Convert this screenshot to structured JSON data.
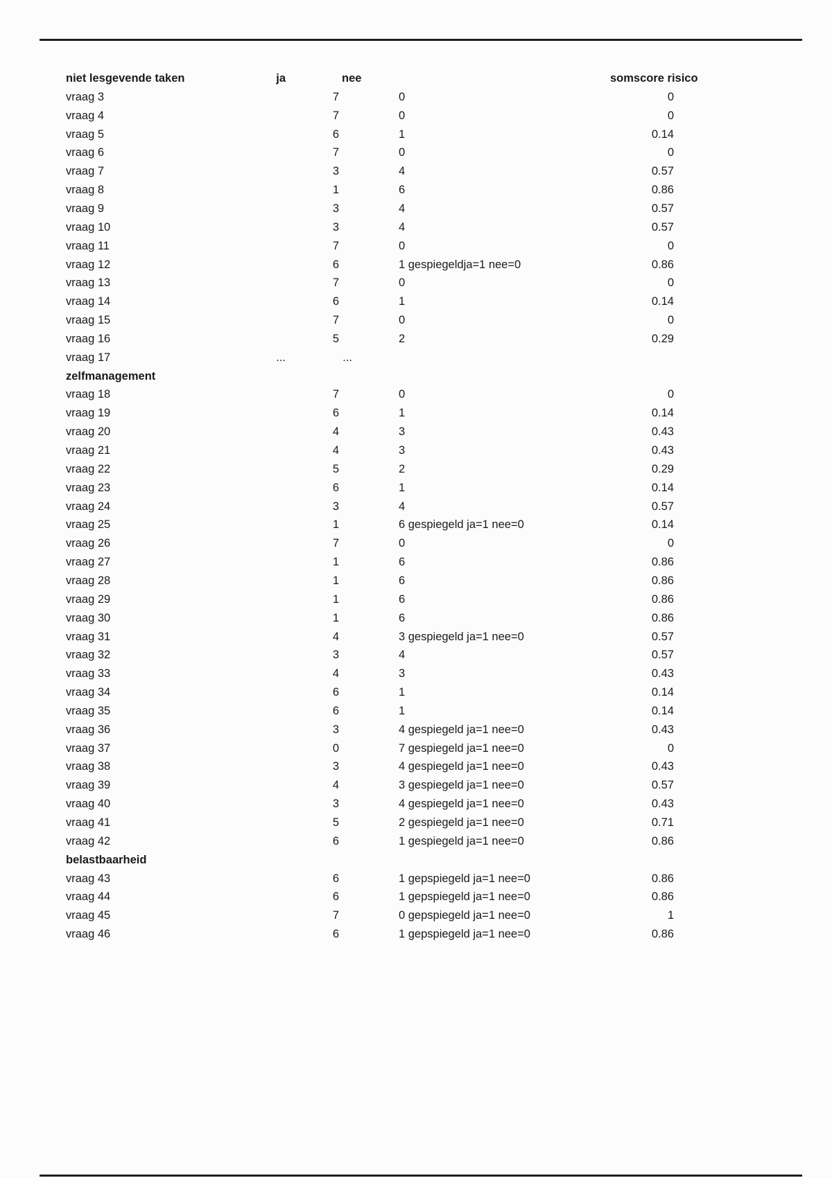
{
  "page": {
    "background": "#fcfcfc",
    "rule_color": "#1e1e1e",
    "text_color": "#1a1a1a"
  },
  "table": {
    "headers": {
      "label": "niet lesgevende taken",
      "ja": "ja",
      "nee": "nee",
      "score": "somscore risico"
    },
    "rows": [
      {
        "type": "data",
        "label": "vraag 3",
        "ja": "7",
        "nee": "0",
        "note": "",
        "score": "0"
      },
      {
        "type": "data",
        "label": "vraag 4",
        "ja": "7",
        "nee": "0",
        "note": "",
        "score": "0"
      },
      {
        "type": "data",
        "label": "vraag 5",
        "ja": "6",
        "nee": "1",
        "note": "",
        "score": "0.14"
      },
      {
        "type": "data",
        "label": "vraag 6",
        "ja": "7",
        "nee": "0",
        "note": "",
        "score": "0"
      },
      {
        "type": "data",
        "label": "vraag 7",
        "ja": "3",
        "nee": "4",
        "note": "",
        "score": "0.57"
      },
      {
        "type": "data",
        "label": "vraag 8",
        "ja": "1",
        "nee": "6",
        "note": "",
        "score": "0.86"
      },
      {
        "type": "data",
        "label": "vraag 9",
        "ja": "3",
        "nee": "4",
        "note": "",
        "score": "0.57"
      },
      {
        "type": "data",
        "label": "vraag 10",
        "ja": "3",
        "nee": "4",
        "note": "",
        "score": "0.57"
      },
      {
        "type": "data",
        "label": "vraag 11",
        "ja": "7",
        "nee": "0",
        "note": "",
        "score": "0"
      },
      {
        "type": "data",
        "label": "vraag 12",
        "ja": "6",
        "nee": "1",
        "note": "gespiegeldja=1 nee=0",
        "score": "0.86"
      },
      {
        "type": "data",
        "label": "vraag 13",
        "ja": "7",
        "nee": "0",
        "note": "",
        "score": "0"
      },
      {
        "type": "data",
        "label": "vraag 14",
        "ja": "6",
        "nee": "1",
        "note": "",
        "score": "0.14"
      },
      {
        "type": "data",
        "label": "vraag 15",
        "ja": "7",
        "nee": "0",
        "note": "",
        "score": "0"
      },
      {
        "type": "data",
        "label": "vraag 16",
        "ja": "5",
        "nee": "2",
        "note": "",
        "score": "0.29"
      },
      {
        "type": "ellipsis",
        "label": "vraag 17",
        "ja": "...",
        "nee": "...",
        "note": "",
        "score": ""
      },
      {
        "type": "section",
        "label": "zelfmanagement"
      },
      {
        "type": "data",
        "label": "vraag 18",
        "ja": "7",
        "nee": "0",
        "note": "",
        "score": "0"
      },
      {
        "type": "data",
        "label": "vraag 19",
        "ja": "6",
        "nee": "1",
        "note": "",
        "score": "0.14"
      },
      {
        "type": "data",
        "label": "vraag 20",
        "ja": "4",
        "nee": "3",
        "note": "",
        "score": "0.43"
      },
      {
        "type": "data",
        "label": "vraag 21",
        "ja": "4",
        "nee": "3",
        "note": "",
        "score": "0.43"
      },
      {
        "type": "data",
        "label": "vraag 22",
        "ja": "5",
        "nee": "2",
        "note": "",
        "score": "0.29"
      },
      {
        "type": "data",
        "label": "vraag 23",
        "ja": "6",
        "nee": "1",
        "note": "",
        "score": "0.14"
      },
      {
        "type": "data",
        "label": "vraag 24",
        "ja": "3",
        "nee": "4",
        "note": "",
        "score": "0.57"
      },
      {
        "type": "data",
        "label": "vraag 25",
        "ja": "1",
        "nee": "6",
        "note": "gespiegeld ja=1 nee=0",
        "score": "0.14"
      },
      {
        "type": "data",
        "label": "vraag 26",
        "ja": "7",
        "nee": "0",
        "note": "",
        "score": "0"
      },
      {
        "type": "data",
        "label": "vraag 27",
        "ja": "1",
        "nee": "6",
        "note": "",
        "score": "0.86"
      },
      {
        "type": "data",
        "label": "vraag 28",
        "ja": "1",
        "nee": "6",
        "note": "",
        "score": "0.86"
      },
      {
        "type": "data",
        "label": "vraag 29",
        "ja": "1",
        "nee": "6",
        "note": "",
        "score": "0.86"
      },
      {
        "type": "data",
        "label": "vraag 30",
        "ja": "1",
        "nee": "6",
        "note": "",
        "score": "0.86"
      },
      {
        "type": "data",
        "label": "vraag 31",
        "ja": "4",
        "nee": "3",
        "note": "gespiegeld ja=1 nee=0",
        "score": "0.57"
      },
      {
        "type": "data",
        "label": "vraag 32",
        "ja": "3",
        "nee": "4",
        "note": "",
        "score": "0.57"
      },
      {
        "type": "data",
        "label": "vraag 33",
        "ja": "4",
        "nee": "3",
        "note": "",
        "score": "0.43"
      },
      {
        "type": "data",
        "label": "vraag 34",
        "ja": "6",
        "nee": "1",
        "note": "",
        "score": "0.14"
      },
      {
        "type": "data",
        "label": "vraag 35",
        "ja": "6",
        "nee": "1",
        "note": "",
        "score": "0.14"
      },
      {
        "type": "data",
        "label": "vraag 36",
        "ja": "3",
        "nee": "4",
        "note": "gespiegeld ja=1 nee=0",
        "score": "0.43"
      },
      {
        "type": "data",
        "label": "vraag 37",
        "ja": "0",
        "nee": "7",
        "note": "gespiegeld ja=1 nee=0",
        "score": "0"
      },
      {
        "type": "data",
        "label": "vraag 38",
        "ja": "3",
        "nee": "4",
        "note": "gespiegeld ja=1 nee=0",
        "score": "0.43"
      },
      {
        "type": "data",
        "label": "vraag 39",
        "ja": "4",
        "nee": "3",
        "note": "gespiegeld ja=1 nee=0",
        "score": "0.57"
      },
      {
        "type": "data",
        "label": "vraag 40",
        "ja": "3",
        "nee": "4",
        "note": "gespiegeld ja=1 nee=0",
        "score": "0.43"
      },
      {
        "type": "data",
        "label": "vraag 41",
        "ja": "5",
        "nee": "2",
        "note": "gespiegeld ja=1 nee=0",
        "score": "0.71"
      },
      {
        "type": "data",
        "label": "vraag 42",
        "ja": "6",
        "nee": "1",
        "note": "gespiegeld ja=1 nee=0",
        "score": "0.86"
      },
      {
        "type": "section",
        "label": "belastbaarheid"
      },
      {
        "type": "data",
        "label": "vraag 43",
        "ja": "6",
        "nee": "1",
        "note": "gepspiegeld ja=1 nee=0",
        "score": "0.86"
      },
      {
        "type": "data",
        "label": "vraag 44",
        "ja": "6",
        "nee": "1",
        "note": "gepspiegeld ja=1 nee=0",
        "score": "0.86"
      },
      {
        "type": "data",
        "label": "vraag 45",
        "ja": "7",
        "nee": "0",
        "note": "gepspiegeld ja=1 nee=0",
        "score": "1"
      },
      {
        "type": "data",
        "label": "vraag 46",
        "ja": "6",
        "nee": "1",
        "note": "gepspiegeld ja=1 nee=0",
        "score": "0.86"
      }
    ]
  }
}
